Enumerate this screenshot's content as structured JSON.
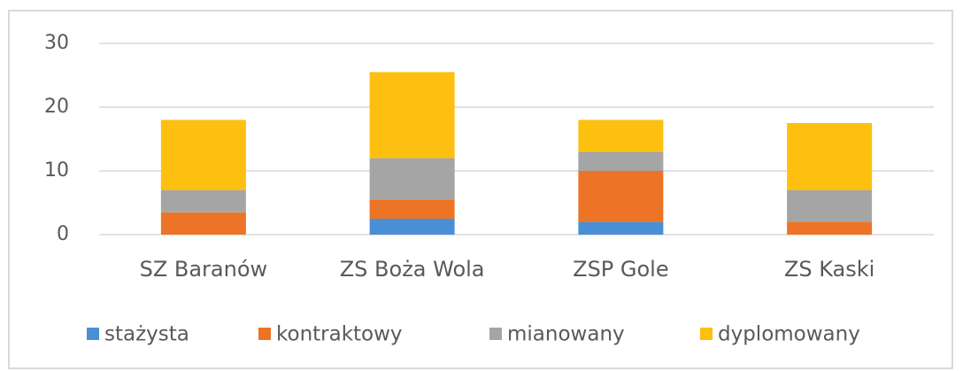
{
  "chart_data": {
    "type": "stacked_bar",
    "categories": [
      "SZ Baranów",
      "ZS Boża Wola",
      "ZSP Gole",
      "ZS Kaski"
    ],
    "series": [
      {
        "name": "stażysta",
        "color": "#4a8fd6",
        "values": [
          0,
          2.5,
          2,
          0
        ]
      },
      {
        "name": "kontraktowy",
        "color": "#ed7426",
        "values": [
          3.5,
          3,
          8,
          2
        ]
      },
      {
        "name": "mianowany",
        "color": "#a5a5a5",
        "values": [
          3.5,
          6.5,
          3,
          5
        ]
      },
      {
        "name": "dyplomowany",
        "color": "#fdc010",
        "values": [
          11,
          13.5,
          5,
          10.5
        ]
      }
    ],
    "ylim": [
      0,
      30
    ],
    "yticks": [
      0,
      10,
      20,
      30
    ],
    "grid": true,
    "legend": "bottom"
  }
}
